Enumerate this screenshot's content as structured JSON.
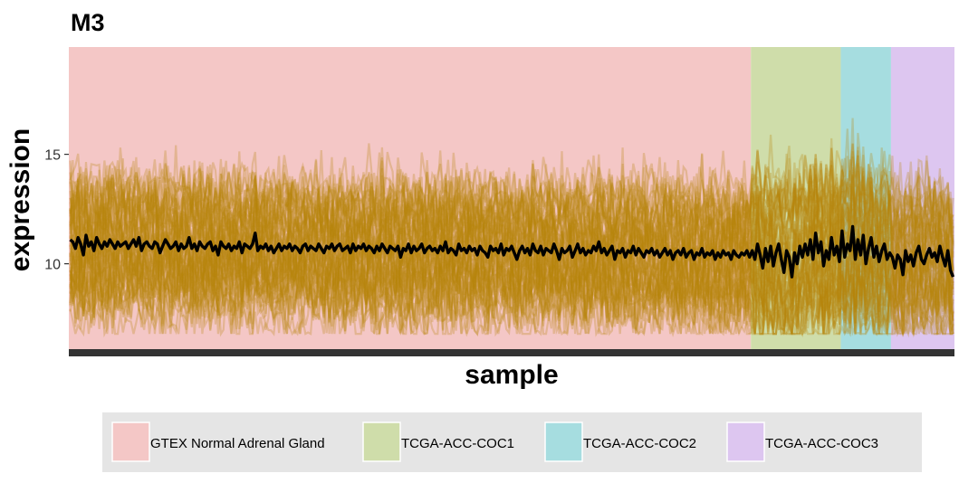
{
  "chart_data": {
    "type": "line",
    "title": "M3",
    "xlabel": "sample",
    "ylabel": "expression",
    "ylim": [
      6.1,
      19.9
    ],
    "yticks": [
      10,
      15
    ],
    "x_ticks_shown": false,
    "grid": false,
    "legend_position": "bottom",
    "groups": [
      {
        "name": "GTEX Normal Adrenal Gland",
        "color": "#F4C7C6",
        "sample_count": 258
      },
      {
        "name": "TCGA-ACC-COC1",
        "color": "#CFDDAA",
        "sample_count": 34
      },
      {
        "name": "TCGA-ACC-COC2",
        "color": "#A6DDE0",
        "sample_count": 19
      },
      {
        "name": "TCGA-ACC-COC3",
        "color": "#DDC6F0",
        "sample_count": 24
      }
    ],
    "series": [
      {
        "name": "",
        "color": "#000000",
        "description_values": [
          11.1,
          11.0,
          10.7,
          11.2,
          10.9,
          10.4,
          11.3,
          10.8,
          11.0,
          10.6,
          11.2,
          10.9,
          10.7,
          11.0,
          10.8,
          11.1,
          10.9,
          10.7,
          11.0,
          10.8,
          10.9,
          11.0,
          10.7,
          10.9,
          11.1,
          10.8,
          11.2,
          10.6,
          10.9,
          11.0,
          10.8,
          10.7,
          11.0,
          10.9,
          10.5,
          10.8,
          11.1,
          10.9,
          10.7,
          10.8,
          11.0,
          10.6,
          10.9,
          10.7,
          10.8,
          11.2,
          10.7,
          10.9,
          10.6,
          11.0,
          10.8,
          10.7,
          10.9,
          11.0,
          10.6,
          10.8,
          10.4,
          11.0,
          10.8,
          10.7,
          10.9,
          10.6,
          10.8,
          10.7,
          11.0,
          10.5,
          10.9,
          10.8,
          10.7,
          10.9,
          11.4,
          10.6,
          10.8,
          10.7,
          10.9,
          10.6,
          10.8,
          10.5,
          10.7,
          10.9,
          10.6,
          10.8,
          10.7,
          10.9,
          10.6,
          10.8,
          10.7,
          10.5,
          10.8,
          10.9,
          10.6,
          10.8,
          10.7,
          10.6,
          10.9,
          10.7,
          10.5,
          10.8,
          10.7,
          10.9,
          10.6,
          10.8,
          10.9,
          10.6,
          10.7,
          10.8,
          10.5,
          10.9,
          10.6,
          10.8,
          10.7,
          10.9,
          10.6,
          10.8,
          10.7,
          10.5,
          10.8,
          10.6,
          10.9,
          10.7,
          10.5,
          10.8,
          10.7,
          10.6,
          10.8,
          10.3,
          10.7,
          10.6,
          10.9,
          10.5,
          10.8,
          10.6,
          10.7,
          10.9,
          10.5,
          10.7,
          10.8,
          10.6,
          10.7,
          10.5,
          10.8,
          10.6,
          11.0,
          10.5,
          10.7,
          10.6,
          10.4,
          10.9,
          10.6,
          10.7,
          10.5,
          10.8,
          10.6,
          10.7,
          10.4,
          10.8,
          10.6,
          10.5,
          10.3,
          10.8,
          10.6,
          10.7,
          10.5,
          10.9,
          10.4,
          10.7,
          10.6,
          10.8,
          10.5,
          10.2,
          10.6,
          10.8,
          10.5,
          10.7,
          10.4,
          10.9,
          10.6,
          10.5,
          10.8,
          10.4,
          10.7,
          10.6,
          10.5,
          10.9,
          10.6,
          10.2,
          10.7,
          10.5,
          10.6,
          10.8,
          10.3,
          10.6,
          10.9,
          10.5,
          10.7,
          10.4,
          10.6,
          10.5,
          10.8,
          10.6,
          11.0,
          10.5,
          10.7,
          10.4,
          10.6,
          10.8,
          10.2,
          10.6,
          10.5,
          10.7,
          10.3,
          10.6,
          10.5,
          10.8,
          10.4,
          10.7,
          10.5,
          10.3,
          10.6,
          10.5,
          10.7,
          10.4,
          10.6,
          10.3,
          10.5,
          10.7,
          10.4,
          10.6,
          10.2,
          10.5,
          10.6,
          10.4,
          10.7,
          10.3,
          10.5,
          10.6,
          10.2,
          10.5,
          10.4,
          10.7,
          10.3,
          10.5,
          10.4,
          10.6,
          10.2,
          10.5,
          10.3,
          10.6,
          10.4,
          10.5,
          10.2,
          10.6,
          10.4,
          10.3,
          10.5,
          10.4,
          10.6,
          10.3,
          10.6,
          10.2,
          10.9,
          10.4,
          9.8,
          10.7,
          10.1,
          10.8,
          9.9,
          10.5,
          10.9,
          10.2,
          9.6,
          10.6,
          10.3,
          9.4,
          10.5,
          10.0,
          10.8,
          10.3,
          10.9,
          10.4,
          11.1,
          10.2,
          11.4,
          10.5,
          11.0,
          9.9,
          10.6,
          10.2,
          11.2,
          10.4,
          10.8,
          10.1,
          11.5,
          10.3,
          10.9,
          10.6,
          11.7,
          10.2,
          11.1,
          10.4,
          11.3,
          10.0,
          10.7,
          11.2,
          10.3,
          10.8,
          10.1,
          10.6,
          10.9,
          10.2,
          10.5,
          10.3,
          9.8,
          10.4,
          10.2,
          9.5,
          10.6,
          10.1,
          10.4,
          9.9,
          10.5,
          10.8,
          10.2,
          10.0,
          10.4,
          10.7,
          10.3,
          10.5,
          10.1,
          10.8,
          10.3,
          9.9,
          10.6,
          9.7,
          9.4
        ]
      }
    ],
    "background_lines": {
      "color": "#B8860B",
      "count": 60,
      "note": "many overlapping semi-transparent gene expression traces"
    }
  }
}
